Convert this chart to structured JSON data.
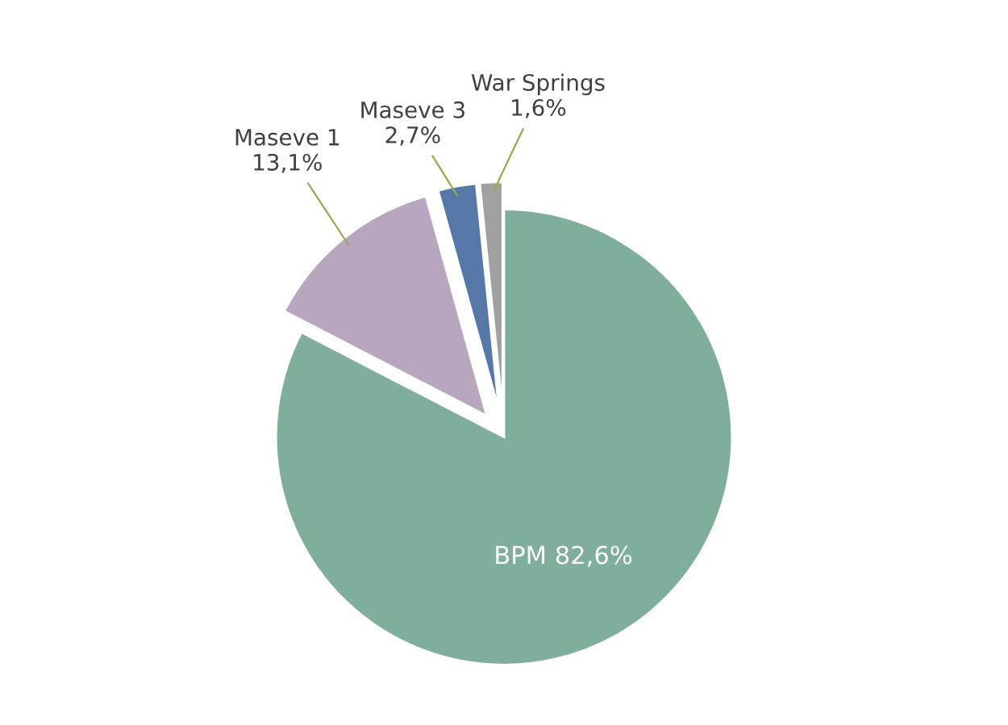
{
  "chart_data": {
    "type": "pie",
    "categories": [
      "BPM",
      "Maseve 1",
      "Maseve 3",
      "War Springs"
    ],
    "values": [
      82.6,
      13.1,
      2.7,
      1.6
    ],
    "value_labels": [
      "82,6%",
      "13,1%",
      "2,7%",
      "1,6%"
    ],
    "colors": [
      "#7fae9a",
      "#b8a6be",
      "#5578a8",
      "#a0a0a0"
    ],
    "legend": false
  }
}
